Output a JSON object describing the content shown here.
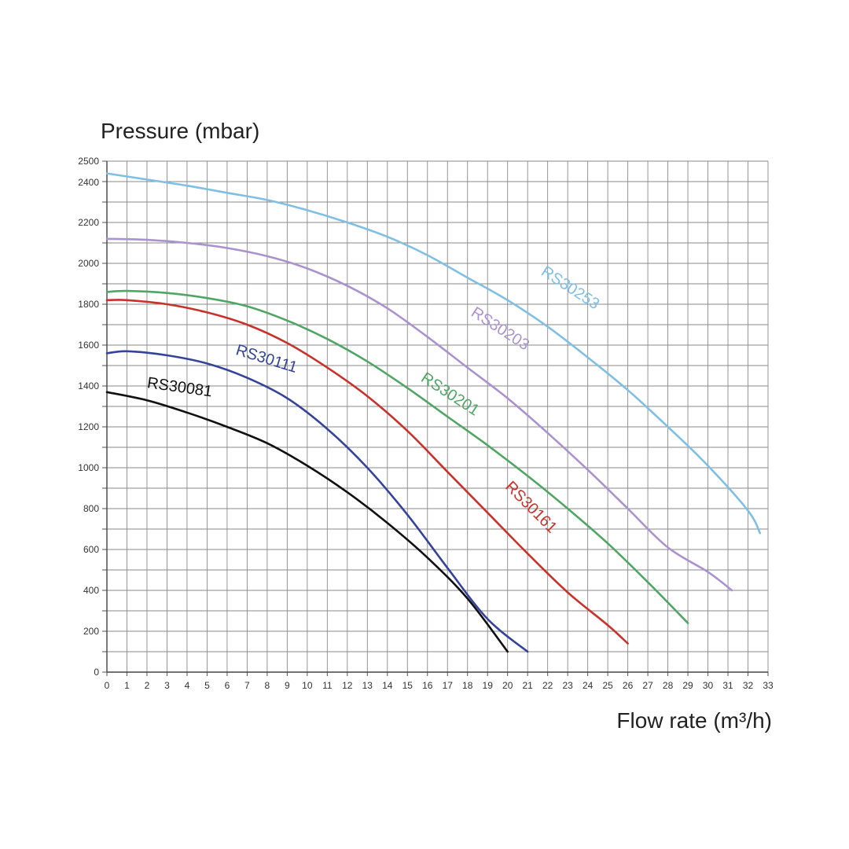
{
  "chart_data": {
    "type": "line",
    "ylabel": "Pressure (mbar)",
    "xlabel": "Flow rate (m³/h)",
    "xlim": [
      0,
      33
    ],
    "ylim": [
      0,
      2500
    ],
    "x_ticks": [
      0,
      1,
      2,
      3,
      4,
      5,
      6,
      7,
      8,
      9,
      10,
      11,
      12,
      13,
      14,
      15,
      16,
      17,
      18,
      19,
      20,
      21,
      22,
      23,
      24,
      25,
      26,
      27,
      28,
      29,
      30,
      31,
      32,
      33
    ],
    "y_ticks": [
      0,
      200,
      400,
      600,
      800,
      1000,
      1200,
      1400,
      1600,
      1800,
      2000,
      2200,
      2400,
      2500
    ],
    "grid": true,
    "series": [
      {
        "name": "RS30081",
        "color": "#111111",
        "points": [
          [
            0,
            1370
          ],
          [
            2,
            1330
          ],
          [
            4,
            1270
          ],
          [
            6,
            1200
          ],
          [
            8,
            1120
          ],
          [
            10,
            1010
          ],
          [
            12,
            880
          ],
          [
            14,
            730
          ],
          [
            16,
            560
          ],
          [
            18,
            360
          ],
          [
            20,
            100
          ]
        ]
      },
      {
        "name": "RS30111",
        "color": "#35449a",
        "points": [
          [
            0,
            1560
          ],
          [
            1,
            1570
          ],
          [
            3,
            1550
          ],
          [
            5,
            1510
          ],
          [
            7,
            1440
          ],
          [
            9,
            1340
          ],
          [
            11,
            1190
          ],
          [
            13,
            1000
          ],
          [
            15,
            770
          ],
          [
            17,
            510
          ],
          [
            19,
            260
          ],
          [
            21,
            100
          ]
        ]
      },
      {
        "name": "RS30161",
        "color": "#c9312b",
        "points": [
          [
            0,
            1820
          ],
          [
            1,
            1820
          ],
          [
            3,
            1800
          ],
          [
            5,
            1760
          ],
          [
            7,
            1700
          ],
          [
            9,
            1610
          ],
          [
            11,
            1490
          ],
          [
            13,
            1350
          ],
          [
            15,
            1180
          ],
          [
            17,
            980
          ],
          [
            19,
            780
          ],
          [
            21,
            580
          ],
          [
            23,
            390
          ],
          [
            25,
            230
          ],
          [
            26,
            140
          ]
        ]
      },
      {
        "name": "RS30201",
        "color": "#4fa665",
        "points": [
          [
            0,
            1860
          ],
          [
            1,
            1865
          ],
          [
            3,
            1855
          ],
          [
            5,
            1830
          ],
          [
            7,
            1790
          ],
          [
            9,
            1720
          ],
          [
            11,
            1630
          ],
          [
            13,
            1520
          ],
          [
            15,
            1390
          ],
          [
            17,
            1250
          ],
          [
            19,
            1110
          ],
          [
            21,
            960
          ],
          [
            23,
            800
          ],
          [
            25,
            630
          ],
          [
            27,
            440
          ],
          [
            29,
            240
          ]
        ]
      },
      {
        "name": "RS30203",
        "color": "#aa92cf",
        "points": [
          [
            0,
            2120
          ],
          [
            2,
            2115
          ],
          [
            4,
            2100
          ],
          [
            6,
            2075
          ],
          [
            8,
            2035
          ],
          [
            10,
            1975
          ],
          [
            12,
            1890
          ],
          [
            14,
            1780
          ],
          [
            16,
            1640
          ],
          [
            18,
            1490
          ],
          [
            20,
            1340
          ],
          [
            22,
            1170
          ],
          [
            24,
            990
          ],
          [
            26,
            800
          ],
          [
            28,
            610
          ],
          [
            30,
            490
          ],
          [
            31.2,
            400
          ]
        ]
      },
      {
        "name": "RS30253",
        "color": "#7fbfe3",
        "points": [
          [
            0,
            2440
          ],
          [
            2,
            2410
          ],
          [
            4,
            2380
          ],
          [
            6,
            2345
          ],
          [
            8,
            2310
          ],
          [
            10,
            2260
          ],
          [
            12,
            2200
          ],
          [
            14,
            2130
          ],
          [
            16,
            2040
          ],
          [
            18,
            1930
          ],
          [
            20,
            1820
          ],
          [
            22,
            1690
          ],
          [
            24,
            1540
          ],
          [
            26,
            1380
          ],
          [
            28,
            1200
          ],
          [
            30,
            1010
          ],
          [
            32,
            790
          ],
          [
            32.6,
            680
          ]
        ]
      }
    ],
    "annotations": [
      {
        "text": "RS30081",
        "series": "RS30081",
        "x": 3.6,
        "y": 1370,
        "angle": 8
      },
      {
        "text": "RS30111",
        "series": "RS30111",
        "x": 7.9,
        "y": 1510,
        "angle": 17
      },
      {
        "text": "RS30201",
        "series": "RS30201",
        "x": 17.0,
        "y": 1340,
        "angle": 33
      },
      {
        "text": "RS30161",
        "series": "RS30161",
        "x": 21.0,
        "y": 790,
        "angle": 45
      },
      {
        "text": "RS30203",
        "series": "RS30203",
        "x": 19.5,
        "y": 1660,
        "angle": 33
      },
      {
        "text": "RS30253",
        "series": "RS30253",
        "x": 23.0,
        "y": 1860,
        "angle": 33
      }
    ]
  }
}
